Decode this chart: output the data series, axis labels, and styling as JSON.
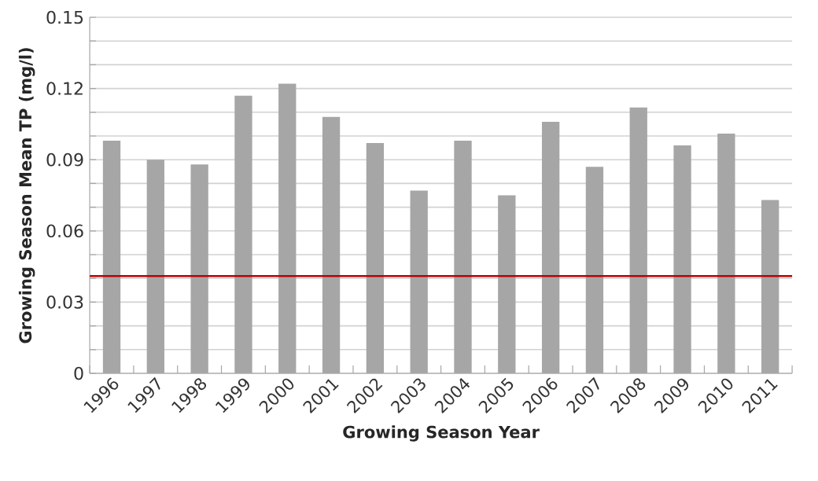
{
  "chart_data": {
    "type": "bar",
    "xlabel": "Growing Season Year",
    "ylabel": "Growing Season Mean TP (mg/l)",
    "categories": [
      "1996",
      "1997",
      "1998",
      "1999",
      "2000",
      "2001",
      "2002",
      "2003",
      "2004",
      "2005",
      "2006",
      "2007",
      "2008",
      "2009",
      "2010",
      "2011"
    ],
    "values": [
      0.098,
      0.09,
      0.088,
      0.117,
      0.122,
      0.108,
      0.097,
      0.077,
      0.098,
      0.075,
      0.106,
      0.087,
      0.112,
      0.096,
      0.101,
      0.073
    ],
    "color": "#a6a6a6",
    "ylim": [
      0,
      0.15
    ],
    "yticks": [
      0,
      {
        "value": 0.01,
        "label": null
      },
      {
        "value": 0.02,
        "label": null
      },
      0.03,
      {
        "value": 0.04,
        "label": null
      },
      {
        "value": 0.05,
        "label": null
      },
      0.06,
      {
        "value": 0.07,
        "label": null
      },
      {
        "value": 0.08,
        "label": null
      },
      0.09,
      {
        "value": 0.1,
        "label": null
      },
      {
        "value": 0.11,
        "label": null
      },
      0.12,
      {
        "value": 0.13,
        "label": null
      },
      {
        "value": 0.14,
        "label": null
      },
      0.15
    ],
    "grid": "y",
    "ref_lines": [
      {
        "axis": "y",
        "value": 0.041,
        "color": "#c00000"
      }
    ]
  }
}
